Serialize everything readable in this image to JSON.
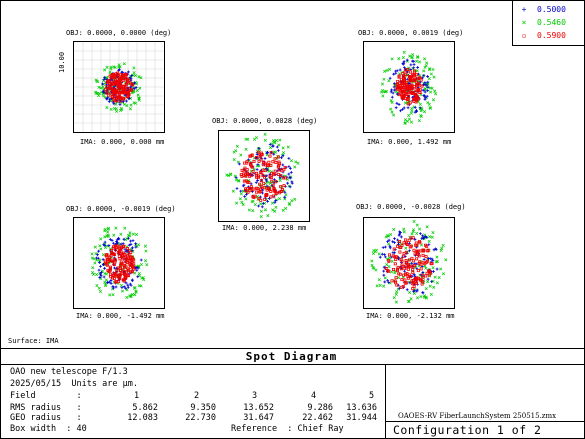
{
  "legend": {
    "items": [
      {
        "label": "0.5000",
        "color": "#0000cc",
        "marker": "+"
      },
      {
        "label": "0.5460",
        "color": "#00cc00",
        "marker": "×"
      },
      {
        "label": "0.5900",
        "color": "#ee0000",
        "marker": "▫"
      }
    ]
  },
  "fields": [
    {
      "obj": "OBJ: 0.0000, 0.0000 (deg)",
      "ima": "IMA: 0.000, 0.000 mm"
    },
    {
      "obj": "OBJ: 0.0000, 0.0019 (deg)",
      "ima": "IMA: 0.000, 1.492 mm"
    },
    {
      "obj": "OBJ: 0.0000, 0.0028 (deg)",
      "ima": "IMA: 0.000, 2.238 mm"
    },
    {
      "obj": "OBJ: 0.0000, -0.0019 (deg)",
      "ima": "IMA: 0.000, -1.492 mm"
    },
    {
      "obj": "OBJ: 0.0000, -0.0028 (deg)",
      "ima": "IMA: 0.000, -2.132 mm"
    }
  ],
  "scale_label": "10.00",
  "surface_label": "Surface: IMA",
  "title": "Spot Diagram",
  "info": {
    "line1": "OAO new telescope F/1.3",
    "line2": "2025/05/15  Units are μm.",
    "field_label": "Field        :",
    "field_values": [
      "1",
      "2",
      "3",
      "4",
      "5"
    ],
    "rms_label": "RMS radius   :",
    "rms_values": [
      "5.862",
      "9.350",
      "13.652",
      "9.286",
      "13.636"
    ],
    "geo_label": "GEO radius   :",
    "geo_values": [
      "12.083",
      "22.730",
      "31.647",
      "22.462",
      "31.944"
    ],
    "box_width": "Box width  : 40",
    "reference": "Reference  : Chief Ray"
  },
  "file_label": "OAOES-RV FiberLaunchSystem 250515.zmx",
  "config_label": "Configuration 1 of 2"
}
